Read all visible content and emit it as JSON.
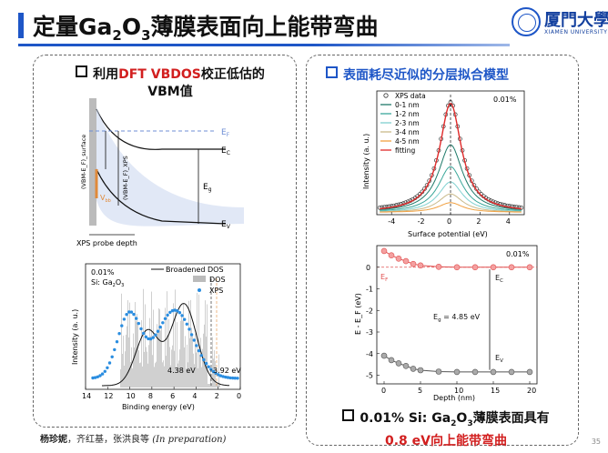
{
  "title": {
    "text_pre": "定量Ga",
    "sub1": "2",
    "text_mid": "O",
    "sub2": "3",
    "text_post": "薄膜表面向上能带弯曲"
  },
  "logo": {
    "cn": "厦門大學",
    "en": "XIAMEN UNIVERSITY"
  },
  "left_heading": {
    "pre": "利用",
    "red": "DFT VBDOS",
    "post": "校正低估的",
    "line2": "VBM值"
  },
  "right_heading": "表面耗尽近似的分层拟合模型",
  "band_diagram": {
    "ef_label": "E",
    "ef_sub": "F",
    "ec_label": "E",
    "ec_sub": "C",
    "ev_label": "E",
    "ev_sub": "V",
    "eg_label": "E",
    "eg_sub": "g",
    "vbb_label": "V",
    "vbb_sub": "bb",
    "label_surface": "(VBM-E_F)_surface",
    "label_xps": "(VBM-E_F)_XPS",
    "probe_label": "XPS probe depth"
  },
  "dos_chart": {
    "percent": "0.01%",
    "material_pre": "Si: Ga",
    "material_sub1": "2",
    "material_mid": "O",
    "material_sub2": "3",
    "legend": [
      "Broadened DOS",
      "DOS",
      "XPS"
    ],
    "annotation_1": "4.38 eV",
    "annotation_2": "3.92 eV",
    "xlabel": "Binding energy (eV)",
    "ylabel": "Intensity (a. u.)",
    "xticks": [
      "14",
      "12",
      "10",
      "8",
      "6",
      "4",
      "2",
      "0"
    ]
  },
  "chart_data": [
    {
      "type": "line",
      "title": "",
      "xlabel": "Surface potential (eV)",
      "ylabel": "Intensity (a. u.)",
      "annotation": "0.01%",
      "xlim": [
        -5,
        5
      ],
      "xticks": [
        "-4",
        "-2",
        "0",
        "2",
        "4"
      ],
      "series": [
        {
          "name": "XPS data",
          "style": "open-circles",
          "center": 0.0,
          "width": 0.9,
          "peak": 1.0
        },
        {
          "name": "0-1 nm",
          "color": "#1f7a6a",
          "center": 0.0,
          "width": 1.0,
          "peak": 0.62
        },
        {
          "name": "1-2 nm",
          "color": "#3aa79a",
          "center": 0.0,
          "width": 1.0,
          "peak": 0.42
        },
        {
          "name": "2-3 nm",
          "color": "#7fd0d0",
          "center": 0.0,
          "width": 1.0,
          "peak": 0.28
        },
        {
          "name": "3-4 nm",
          "color": "#c9b98a",
          "center": 0.0,
          "width": 1.0,
          "peak": 0.17
        },
        {
          "name": "4-5 nm",
          "color": "#f0a040",
          "center": 0.0,
          "width": 1.0,
          "peak": 0.09
        },
        {
          "name": "fitting",
          "color": "#e02a2a",
          "center": 0.0,
          "width": 0.9,
          "peak": 1.0
        }
      ]
    },
    {
      "type": "scatter",
      "title": "",
      "xlabel": "Depth (nm)",
      "ylabel": "E - E_F (eV)",
      "annotation": "0.01%",
      "xlim": [
        -1,
        21
      ],
      "ylim": [
        -5.4,
        1.0
      ],
      "xticks": [
        "0",
        "5",
        "10",
        "15",
        "20"
      ],
      "yticks": [
        "0",
        "-1",
        "-2",
        "-3",
        "-4",
        "-5"
      ],
      "series": [
        {
          "name": "E_C",
          "color": "#e05050",
          "x": [
            0,
            1,
            2,
            3,
            4,
            5,
            7.5,
            10,
            12.5,
            15,
            17.5,
            20
          ],
          "y": [
            0.75,
            0.55,
            0.4,
            0.28,
            0.15,
            0.08,
            0.02,
            0.0,
            0.0,
            0.0,
            0.0,
            0.0
          ]
        },
        {
          "name": "E_V",
          "color": "#555555",
          "x": [
            0,
            1,
            2,
            3,
            4,
            5,
            7.5,
            10,
            12.5,
            15,
            17.5,
            20
          ],
          "y": [
            -4.1,
            -4.3,
            -4.45,
            -4.57,
            -4.7,
            -4.77,
            -4.83,
            -4.85,
            -4.85,
            -4.85,
            -4.85,
            -4.85
          ]
        }
      ],
      "labels": {
        "ef_main": "E",
        "ef_sub": "F",
        "ec_main": "E",
        "ec_sub": "C",
        "ev_main": "E",
        "ev_sub": "V",
        "eg_main": "E",
        "eg_sub": "g",
        "eg_value": "= 4.85 eV"
      }
    }
  ],
  "conclusion": {
    "line1_pre": "0.01% Si: Ga",
    "sub1": "2",
    "mid": "O",
    "sub2": "3",
    "line1_post": "薄膜表面具有",
    "line2_red": "0.8 eV向上能带弯曲"
  },
  "authors": {
    "bold": "杨珍妮",
    "rest": "，齐红基，张洪良等 ",
    "italic": "(In preparation)"
  },
  "page_number": "35"
}
